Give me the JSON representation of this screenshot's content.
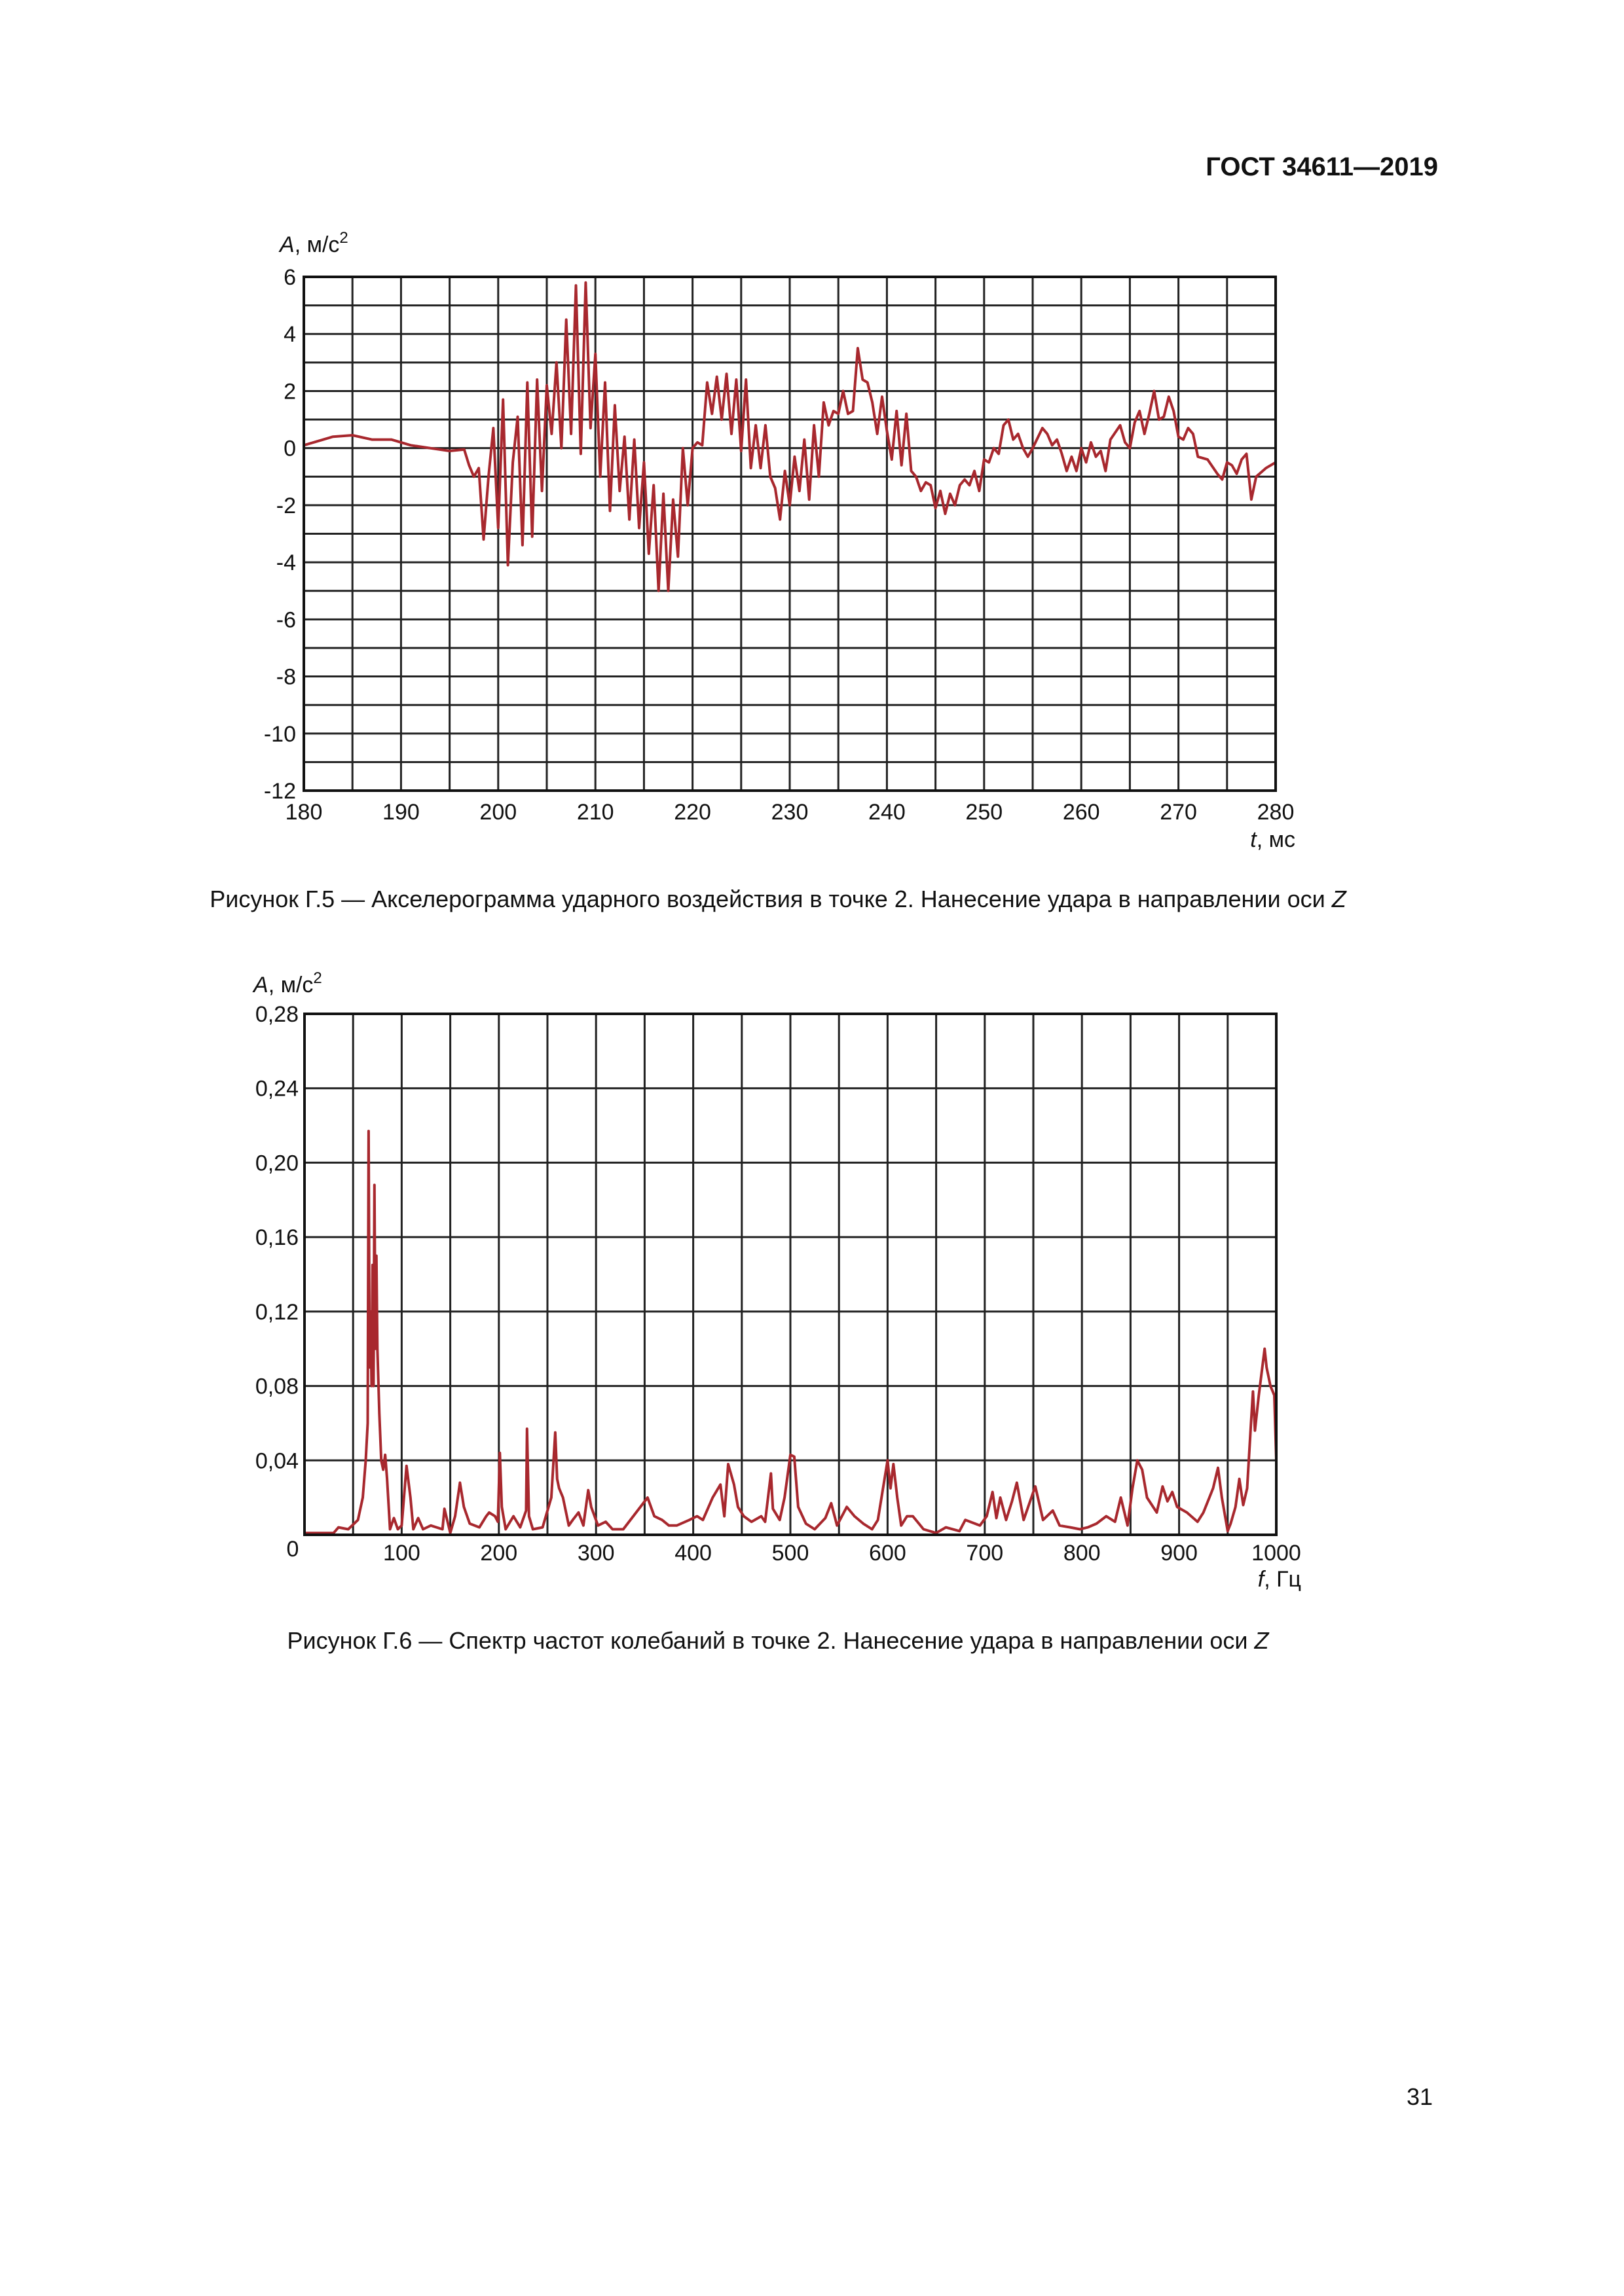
{
  "header": {
    "title": "ГОСТ 34611—2019"
  },
  "page_number": "31",
  "figures": [
    {
      "caption_prefix": "Рисунок Г.5 — Акселерограмма ударного воздействия в точке 2. Нанесение удара в направлении оси ",
      "caption_axis": "Z"
    },
    {
      "caption_prefix": "Рисунок Г.6 — Спектр частот колебаний в точке 2. Нанесение удара в направлении оси ",
      "caption_axis": "Z"
    }
  ],
  "chart_data": [
    {
      "type": "line",
      "ylabel": {
        "var": "A",
        "unit": ", м/с",
        "sup": "2"
      },
      "xlabel": {
        "var": "t",
        "unit": ", мс"
      },
      "xlim": [
        180,
        280
      ],
      "ylim": [
        -12,
        6
      ],
      "xticks": [
        "180",
        "190",
        "200",
        "210",
        "220",
        "230",
        "240",
        "250",
        "260",
        "270",
        "280"
      ],
      "yticks": [
        "6",
        "4",
        "2",
        "0",
        "-2",
        "-4",
        "-6",
        "-8",
        "-10",
        "-12"
      ],
      "grid": true,
      "line_color": "#a8282e",
      "x": [
        180,
        182,
        183,
        185,
        187,
        189,
        191,
        193,
        195,
        196.5,
        197,
        197.5,
        198,
        198.5,
        199,
        199.5,
        200,
        200.5,
        201,
        201.5,
        202,
        202.5,
        203,
        203.5,
        204,
        204.5,
        205,
        205.5,
        206,
        206.5,
        207,
        207.5,
        208,
        208.5,
        209,
        209.5,
        210,
        210.5,
        211,
        211.5,
        212,
        212.5,
        213,
        213.5,
        214,
        214.5,
        215,
        215.5,
        216,
        216.5,
        217,
        217.5,
        218,
        218.5,
        219,
        219.5,
        220,
        220.5,
        221,
        221.5,
        222,
        222.5,
        223,
        223.5,
        224,
        224.5,
        225,
        225.5,
        226,
        226.5,
        227,
        227.5,
        228,
        228.5,
        229,
        229.5,
        230,
        230.5,
        231,
        231.5,
        232,
        232.5,
        233,
        233.5,
        234,
        234.5,
        235,
        235.5,
        236,
        236.5,
        237,
        237.5,
        238,
        238.5,
        239,
        239.5,
        240,
        240.5,
        241,
        241.5,
        242,
        242.5,
        243,
        243.5,
        244,
        244.5,
        245,
        245.5,
        246,
        246.5,
        247,
        247.5,
        248,
        248.5,
        249,
        249.5,
        250,
        250.5,
        251,
        251.5,
        252,
        252.5,
        253,
        253.5,
        254,
        254.5,
        255,
        256,
        256.5,
        257,
        257.5,
        258,
        258.5,
        259,
        259.5,
        260,
        260.5,
        261,
        261.5,
        262,
        262.5,
        263,
        264,
        264.5,
        265,
        265.5,
        266,
        266.5,
        267,
        267.5,
        268,
        268.5,
        269,
        269.5,
        270,
        270.5,
        271,
        271.5,
        272,
        273,
        274,
        274.5,
        275,
        275.5,
        276,
        276.5,
        277,
        277.5,
        278,
        279,
        280
      ],
      "y": [
        0.1,
        0.3,
        0.4,
        0.45,
        0.3,
        0.3,
        0.1,
        0,
        -0.1,
        -0.05,
        -0.6,
        -1,
        -0.7,
        -3.2,
        -1,
        0.7,
        -2.8,
        1.7,
        -4.1,
        -0.5,
        1.1,
        -3.4,
        2.3,
        -3.1,
        2.4,
        -1.5,
        2.2,
        0.5,
        3,
        0,
        4.5,
        0.5,
        5.7,
        -0.2,
        5.8,
        0.7,
        3.3,
        -1,
        2.3,
        -2.2,
        1.5,
        -1.5,
        0.4,
        -2.5,
        0.3,
        -2.8,
        -0.5,
        -3.7,
        -1.3,
        -5,
        -1.6,
        -5,
        -1.8,
        -3.8,
        0,
        -2,
        0,
        0.2,
        0.1,
        2.3,
        1.2,
        2.5,
        1.0,
        2.6,
        0.5,
        2.4,
        -0.1,
        2.4,
        -0.7,
        0.8,
        -0.7,
        0.8,
        -1,
        -1.4,
        -2.5,
        -0.8,
        -2,
        -0.3,
        -1.5,
        0.3,
        -1.8,
        0.8,
        -1,
        1.6,
        0.8,
        1.3,
        1.2,
        2,
        1.2,
        1.3,
        3.5,
        2.4,
        2.3,
        1.6,
        0.5,
        1.8,
        0.6,
        -0.4,
        1.3,
        -0.6,
        1.2,
        -0.8,
        -1,
        -1.5,
        -1.2,
        -1.3,
        -2.1,
        -1.5,
        -2.3,
        -1.6,
        -2,
        -1.3,
        -1.1,
        -1.3,
        -0.8,
        -1.5,
        -0.4,
        -0.5,
        0,
        -0.2,
        0.8,
        1,
        0.3,
        0.5,
        0,
        -0.3,
        0,
        0.7,
        0.5,
        0.1,
        0.3,
        -0.2,
        -0.8,
        -0.3,
        -0.8,
        0,
        -0.5,
        0.2,
        -0.3,
        -0.1,
        -0.8,
        0.3,
        0.8,
        0.2,
        0,
        0.9,
        1.3,
        0.5,
        1.2,
        2,
        1,
        1.1,
        1.8,
        1.3,
        0.4,
        0.3,
        0.7,
        0.5,
        -0.3,
        -0.4,
        -0.9,
        -1.1,
        -0.5,
        -0.6,
        -0.9,
        -0.4,
        -0.2,
        -1.8,
        -1,
        -0.7,
        -0.5
      ]
    },
    {
      "type": "line",
      "ylabel": {
        "var": "A",
        "unit": ", м/с",
        "sup": "2"
      },
      "xlabel": {
        "var": "f",
        "unit": ", Гц"
      },
      "xlim": [
        0,
        1000
      ],
      "ylim": [
        0,
        0.28
      ],
      "xticks": [
        "0",
        "100",
        "200",
        "300",
        "400",
        "500",
        "600",
        "700",
        "800",
        "900",
        "1000"
      ],
      "yticks": [
        "0,28",
        "0,24",
        "0,20",
        "0,16",
        "0,12",
        "0,08",
        "0,04"
      ],
      "grid": true,
      "line_color": "#a8282e",
      "x": [
        0,
        30,
        35,
        45,
        55,
        60,
        63,
        65,
        66,
        67,
        68,
        69,
        70,
        71,
        72,
        73,
        74,
        75,
        77,
        79,
        81,
        83,
        85,
        88,
        92,
        96,
        100,
        105,
        109,
        112,
        117,
        122,
        130,
        142,
        144,
        150,
        155,
        160,
        164,
        170,
        180,
        187,
        190,
        196,
        199,
        201,
        203,
        207,
        215,
        222,
        228,
        229,
        231,
        235,
        245,
        254,
        258,
        260,
        262,
        266,
        272,
        276,
        282,
        287,
        292,
        295,
        302,
        310,
        317,
        328,
        353,
        360,
        368,
        375,
        383,
        396,
        404,
        410,
        420,
        428,
        432,
        436,
        442,
        446,
        452,
        460,
        470,
        474,
        480,
        482,
        489,
        494,
        500,
        504,
        508,
        516,
        525,
        536,
        542,
        548,
        558,
        566,
        575,
        584,
        590,
        600,
        603,
        606,
        610,
        614,
        620,
        626,
        637,
        650,
        660,
        674,
        680,
        695,
        702,
        708,
        712,
        716,
        722,
        728,
        733,
        740,
        748,
        752,
        760,
        770,
        777,
        788,
        798,
        806,
        815,
        825,
        834,
        840,
        847,
        852,
        857,
        862,
        867,
        877,
        883,
        888,
        893,
        898,
        908,
        919,
        925,
        935,
        940,
        944,
        950,
        953,
        958,
        962,
        966,
        970,
        974,
        976,
        978,
        982,
        988,
        990,
        994,
        998,
        1000
      ],
      "y": [
        0.001,
        0.001,
        0.004,
        0.003,
        0.008,
        0.02,
        0.04,
        0.06,
        0.217,
        0.09,
        0.12,
        0.08,
        0.145,
        0.08,
        0.188,
        0.1,
        0.15,
        0.1,
        0.065,
        0.04,
        0.035,
        0.043,
        0.03,
        0.003,
        0.009,
        0.003,
        0.005,
        0.037,
        0.02,
        0.003,
        0.009,
        0.003,
        0.005,
        0.003,
        0.014,
        0.001,
        0.01,
        0.028,
        0.015,
        0.006,
        0.004,
        0.01,
        0.012,
        0.01,
        0.007,
        0.044,
        0.015,
        0.003,
        0.01,
        0.004,
        0.013,
        0.057,
        0.01,
        0.003,
        0.004,
        0.02,
        0.055,
        0.03,
        0.025,
        0.02,
        0.005,
        0.008,
        0.012,
        0.005,
        0.024,
        0.015,
        0.005,
        0.007,
        0.003,
        0.003,
        0.02,
        0.01,
        0.008,
        0.005,
        0.005,
        0.008,
        0.01,
        0.008,
        0.02,
        0.027,
        0.01,
        0.038,
        0.027,
        0.015,
        0.01,
        0.007,
        0.01,
        0.007,
        0.033,
        0.014,
        0.008,
        0.02,
        0.043,
        0.042,
        0.015,
        0.006,
        0.003,
        0.009,
        0.017,
        0.005,
        0.015,
        0.01,
        0.006,
        0.003,
        0.008,
        0.04,
        0.025,
        0.038,
        0.02,
        0.005,
        0.01,
        0.01,
        0.003,
        0.001,
        0.004,
        0.002,
        0.008,
        0.005,
        0.01,
        0.023,
        0.009,
        0.02,
        0.008,
        0.018,
        0.028,
        0.008,
        0.02,
        0.026,
        0.008,
        0.013,
        0.005,
        0.004,
        0.003,
        0.004,
        0.006,
        0.01,
        0.007,
        0.02,
        0.005,
        0.025,
        0.04,
        0.035,
        0.02,
        0.012,
        0.026,
        0.018,
        0.023,
        0.015,
        0.012,
        0.007,
        0.012,
        0.025,
        0.036,
        0.02,
        0.002,
        0.006,
        0.015,
        0.03,
        0.016,
        0.025,
        0.06,
        0.077,
        0.056,
        0.075,
        0.1,
        0.09,
        0.08,
        0.075,
        0.04
      ]
    }
  ]
}
